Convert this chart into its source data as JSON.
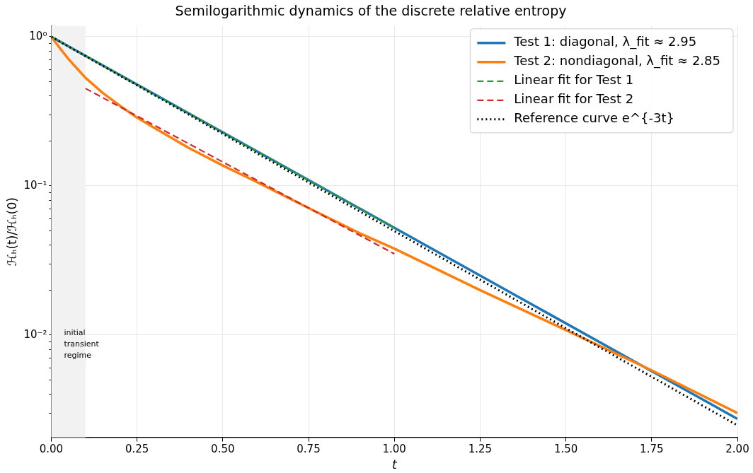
{
  "chart_data": {
    "type": "line",
    "title": "Semilogarithmic dynamics of the discrete relative entropy",
    "xlabel": "t",
    "ylabel": "ℋₕ(t)/ℋₕ(0)",
    "xlim": [
      0,
      2
    ],
    "xticks": [
      {
        "value": 0,
        "label": "0.00"
      },
      {
        "value": 0.25,
        "label": "0.25"
      },
      {
        "value": 0.5,
        "label": "0.50"
      },
      {
        "value": 0.75,
        "label": "0.75"
      },
      {
        "value": 1,
        "label": "1.00"
      },
      {
        "value": 1.25,
        "label": "1.25"
      },
      {
        "value": 1.5,
        "label": "1.50"
      },
      {
        "value": 1.75,
        "label": "1.75"
      },
      {
        "value": 2,
        "label": "2.00"
      }
    ],
    "ylim": [
      0.00206,
      1.18
    ],
    "log": "y",
    "yticks": [
      {
        "value": 0.003,
        "label": null
      },
      {
        "value": 0.004,
        "label": null
      },
      {
        "value": 0.005,
        "label": null
      },
      {
        "value": 0.006,
        "label": null
      },
      {
        "value": 0.007,
        "label": null
      },
      {
        "value": 0.008,
        "label": null
      },
      {
        "value": 0.009,
        "label": null
      },
      {
        "value": 0.01,
        "label": "10⁻²"
      },
      {
        "value": 0.02,
        "label": null
      },
      {
        "value": 0.03,
        "label": null
      },
      {
        "value": 0.04,
        "label": null
      },
      {
        "value": 0.05,
        "label": null
      },
      {
        "value": 0.06,
        "label": null
      },
      {
        "value": 0.07,
        "label": null
      },
      {
        "value": 0.08,
        "label": null
      },
      {
        "value": 0.09,
        "label": null
      },
      {
        "value": 0.1,
        "label": "10⁻¹"
      },
      {
        "value": 0.2,
        "label": null
      },
      {
        "value": 0.3,
        "label": null
      },
      {
        "value": 0.4,
        "label": null
      },
      {
        "value": 0.5,
        "label": null
      },
      {
        "value": 0.6,
        "label": null
      },
      {
        "value": 0.7,
        "label": null
      },
      {
        "value": 0.8,
        "label": null
      },
      {
        "value": 0.9,
        "label": null
      },
      {
        "value": 1,
        "label": "10⁰"
      }
    ],
    "grid": true,
    "legend": "top right",
    "marker": "none",
    "bands": [
      {
        "axis": "x",
        "from": 0,
        "to": 0.1,
        "label": "initial\ntransient\nregime",
        "color": "#f2f2f2"
      }
    ],
    "series": [
      {
        "name": "Test 1: diagonal, λ_fit ≈ 2.95",
        "color": "#1f77b4",
        "x": [
          0,
          2
        ],
        "values": [
          1,
          0.00274
        ],
        "line_style": "solid"
      },
      {
        "name": "Test 2: nondiagonal, λ_fit ≈ 2.85",
        "color": "#ff7f0e",
        "x": [
          0,
          0.025,
          0.05,
          0.1,
          0.15,
          0.2,
          0.25,
          0.3,
          0.4,
          0.5,
          0.6,
          0.75,
          0.9,
          1,
          1.25,
          1.5,
          1.75,
          2
        ],
        "values": [
          1,
          0.84,
          0.71,
          0.53,
          0.42,
          0.345,
          0.287,
          0.245,
          0.18,
          0.137,
          0.106,
          0.071,
          0.048,
          0.038,
          0.02,
          0.0108,
          0.0058,
          0.003
        ],
        "line_style": "solid"
      },
      {
        "name": "Linear fit for Test 1",
        "color": "#2ca02c",
        "x": [
          0,
          1
        ],
        "values": [
          1,
          0.052
        ],
        "line_style": "dashed"
      },
      {
        "name": "Linear fit for Test 2",
        "color": "#d62728",
        "x": [
          0.1,
          1
        ],
        "values": [
          0.45,
          0.035
        ],
        "line_style": "dashed"
      },
      {
        "name": "Reference curve e^{-3t}",
        "color": "#000000",
        "x": [
          0,
          2
        ],
        "values": [
          1,
          0.00248
        ],
        "line_style": "dotted"
      }
    ]
  }
}
